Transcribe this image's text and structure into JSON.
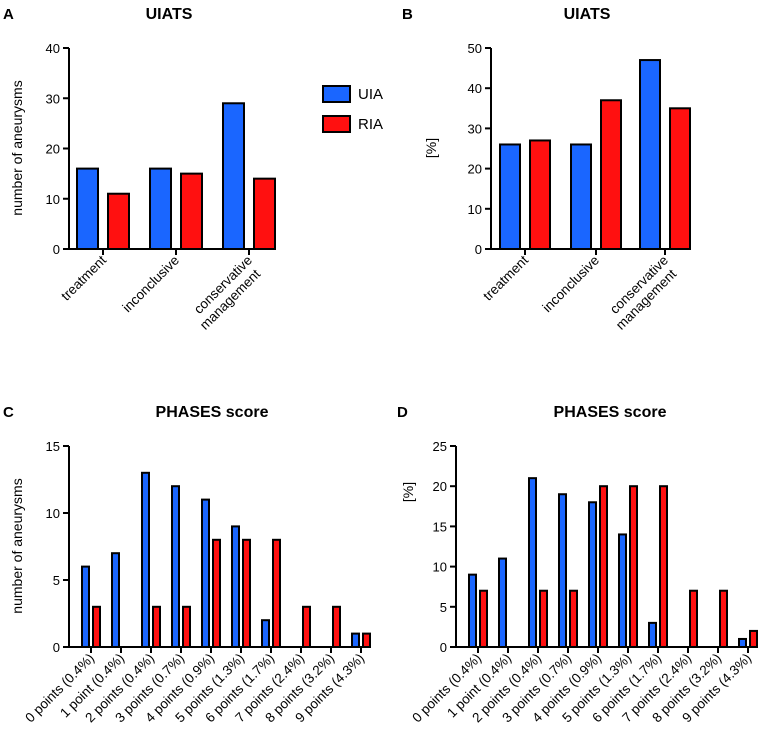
{
  "colors": {
    "UIA": "#1a66ff",
    "RIA": "#ff1010"
  },
  "legend": [
    {
      "key": "UIA",
      "label": "UIA"
    },
    {
      "key": "RIA",
      "label": "RIA"
    }
  ],
  "chart_data": [
    {
      "panel": "A",
      "type": "bar",
      "title": "UIATS",
      "ylabel": "number of aneurysms",
      "xlabel": "",
      "ylim": [
        0,
        40
      ],
      "yticks": [
        0,
        10,
        20,
        30,
        40
      ],
      "categories": [
        "treatment",
        "inconclusive",
        "conservative management"
      ],
      "category_lines": [
        [
          "treatment"
        ],
        [
          "inconclusive"
        ],
        [
          "conservative",
          "management"
        ]
      ],
      "series": [
        {
          "name": "UIA",
          "values": [
            16,
            16,
            29
          ]
        },
        {
          "name": "RIA",
          "values": [
            11,
            15,
            14
          ]
        }
      ]
    },
    {
      "panel": "B",
      "type": "bar",
      "title": "UIATS",
      "ylabel": "[%]",
      "xlabel": "",
      "ylim": [
        0,
        50
      ],
      "yticks": [
        0,
        10,
        20,
        30,
        40,
        50
      ],
      "categories": [
        "treatment",
        "inconclusive",
        "conservative management"
      ],
      "category_lines": [
        [
          "treatment"
        ],
        [
          "inconclusive"
        ],
        [
          "conservative",
          "management"
        ]
      ],
      "series": [
        {
          "name": "UIA",
          "values": [
            26,
            26,
            47
          ]
        },
        {
          "name": "RIA",
          "values": [
            27,
            37,
            35
          ]
        }
      ]
    },
    {
      "panel": "C",
      "type": "bar",
      "title": "PHASES score",
      "ylabel": "number of aneurysms",
      "xlabel": "",
      "ylim": [
        0,
        15
      ],
      "yticks": [
        0,
        5,
        10,
        15
      ],
      "categories": [
        "0 points (0.4%)",
        "1 point (0.4%)",
        "2 points (0.4%)",
        "3 points (0.7%)",
        "4 points (0.9%)",
        "5 points (1.3%)",
        "6 points (1.7%)",
        "7 points (2.4%)",
        "8 points (3.2%)",
        "9 points (4.3%)"
      ],
      "series": [
        {
          "name": "UIA",
          "values": [
            6,
            7,
            13,
            12,
            11,
            9,
            2,
            0,
            0,
            1
          ]
        },
        {
          "name": "RIA",
          "values": [
            3,
            0,
            3,
            3,
            8,
            8,
            8,
            3,
            3,
            1
          ]
        }
      ]
    },
    {
      "panel": "D",
      "type": "bar",
      "title": "PHASES score",
      "ylabel": "[%]",
      "xlabel": "",
      "ylim": [
        0,
        25
      ],
      "yticks": [
        0,
        5,
        10,
        15,
        20,
        25
      ],
      "categories": [
        "0 points (0.4%)",
        "1 point (0.4%)",
        "2 points (0.4%)",
        "3 points (0.7%)",
        "4 points (0.9%)",
        "5 points (1.3%)",
        "6 points (1.7%)",
        "7 points (2.4%)",
        "8 points (3.2%)",
        "9 points (4.3%)"
      ],
      "series": [
        {
          "name": "UIA",
          "values": [
            9,
            11,
            21,
            19,
            18,
            14,
            3,
            0,
            0,
            1
          ]
        },
        {
          "name": "RIA",
          "values": [
            7,
            0,
            7,
            7,
            20,
            20,
            20,
            7,
            7,
            2
          ]
        }
      ]
    }
  ]
}
